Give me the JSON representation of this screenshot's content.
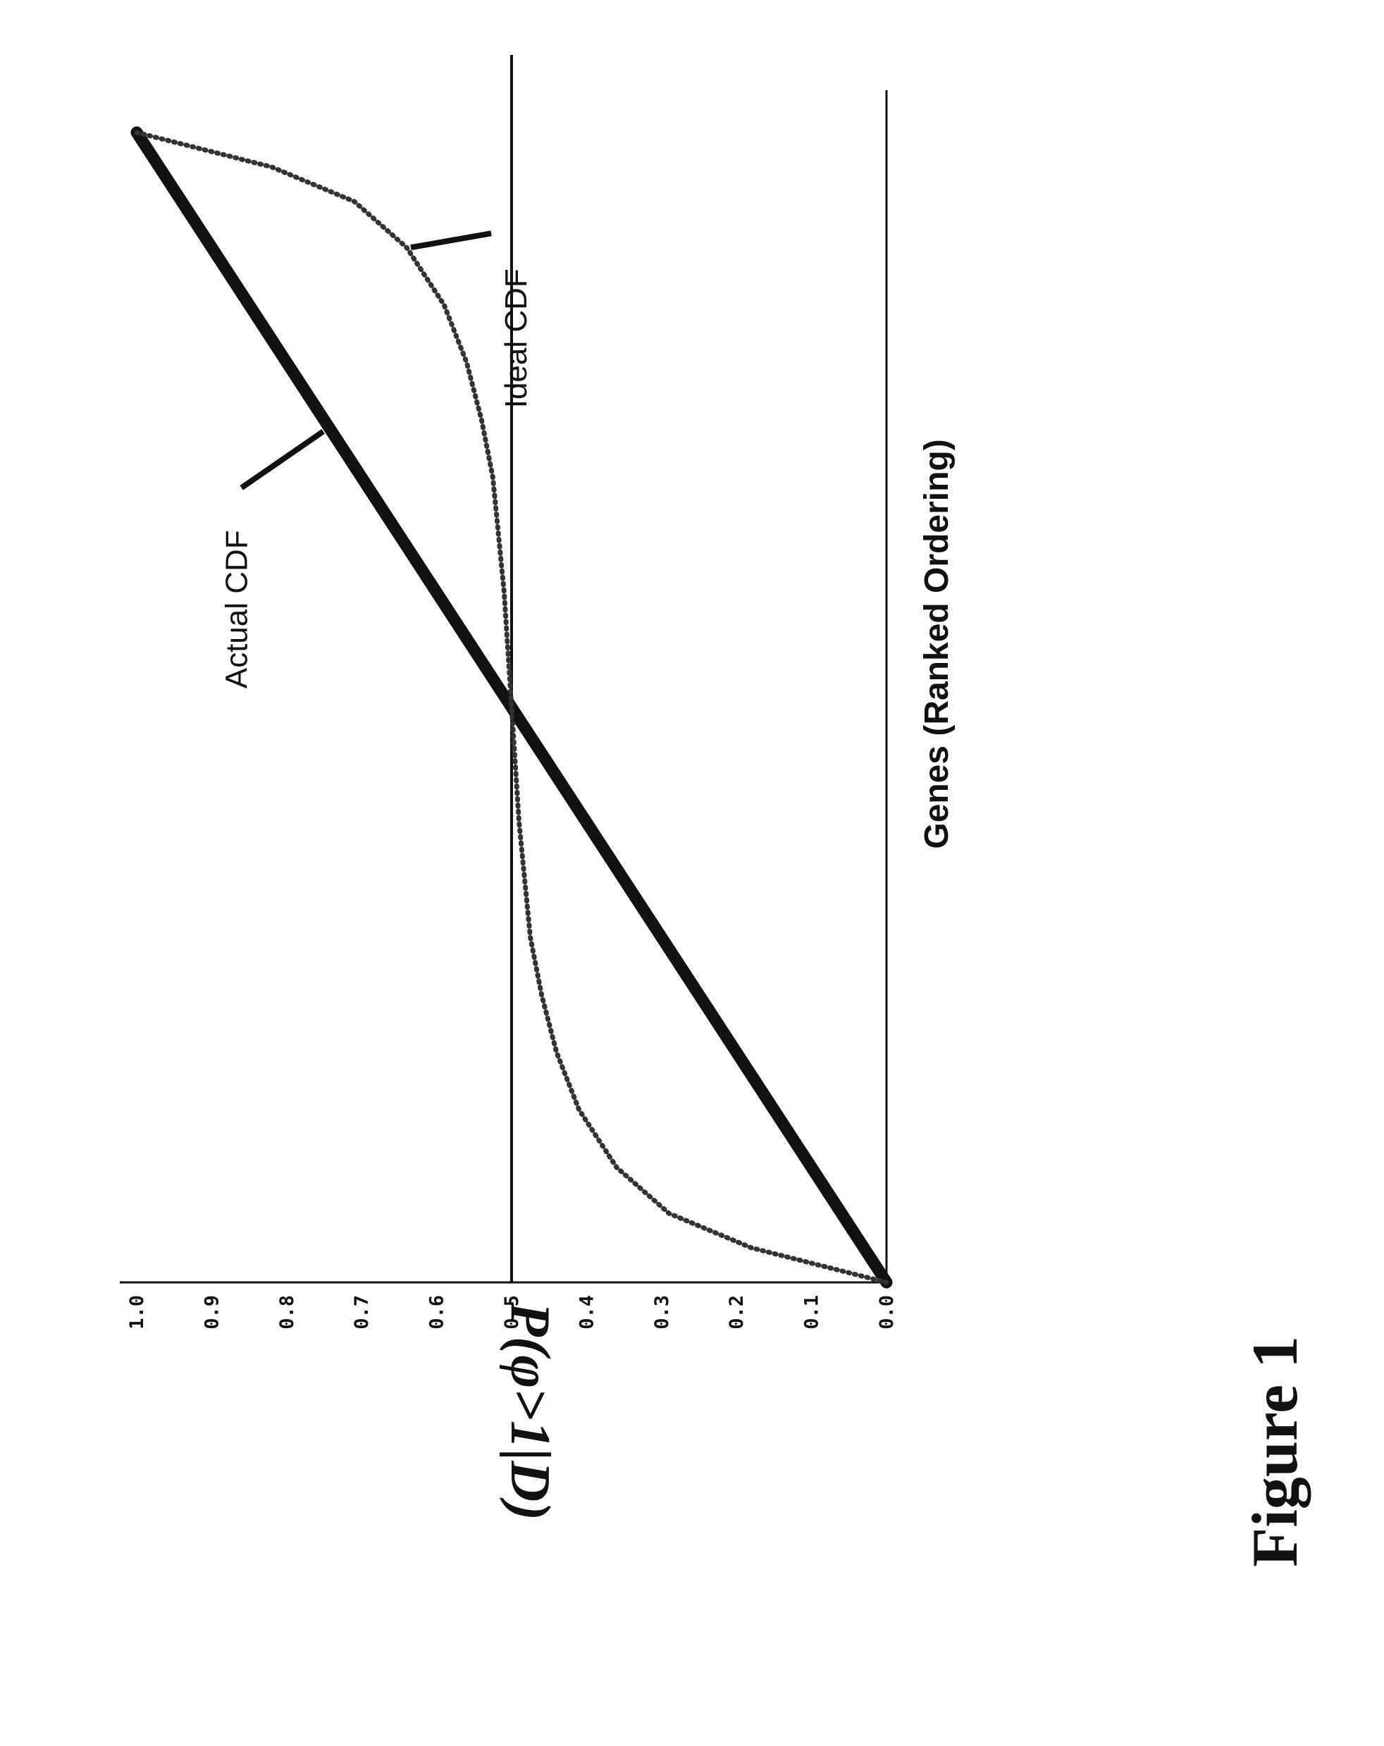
{
  "figure_label": "Figure 1",
  "chart_data": {
    "type": "line",
    "title": "",
    "xlabel": "Genes (Ranked Ordering)",
    "ylabel": "P(φ>1|D)",
    "ylim": [
      0.0,
      1.0
    ],
    "yticks": [
      "0.0",
      "0.1",
      "0.2",
      "0.3",
      "0.4",
      "0.5",
      "0.6",
      "0.7",
      "0.8",
      "0.9",
      "1.0"
    ],
    "x_normalized": true,
    "reference_line": 0.5,
    "grid": false,
    "legend": "none",
    "series": [
      {
        "name": "Actual CDF",
        "style": "thick-solid",
        "color": "#111111",
        "x": [
          0.0,
          0.1,
          0.2,
          0.3,
          0.4,
          0.5,
          0.6,
          0.7,
          0.8,
          0.9,
          1.0
        ],
        "y": [
          0.0,
          0.1,
          0.2,
          0.3,
          0.4,
          0.5,
          0.6,
          0.7,
          0.8,
          0.9,
          1.0
        ]
      },
      {
        "name": "Ideal CDF",
        "style": "dotted",
        "color": "#333333",
        "x": [
          0.0,
          0.03,
          0.06,
          0.1,
          0.15,
          0.2,
          0.25,
          0.3,
          0.4,
          0.5,
          0.6,
          0.7,
          0.75,
          0.8,
          0.85,
          0.9,
          0.94,
          0.97,
          1.0
        ],
        "y": [
          0.0,
          0.18,
          0.29,
          0.36,
          0.41,
          0.44,
          0.46,
          0.475,
          0.49,
          0.5,
          0.51,
          0.525,
          0.54,
          0.56,
          0.59,
          0.64,
          0.71,
          0.82,
          1.0
        ]
      }
    ],
    "annotations": [
      {
        "text": "Actual CDF",
        "series": "Actual CDF",
        "x": 0.74
      },
      {
        "text": "Ideal CDF",
        "series": "Ideal CDF",
        "x": 0.9
      }
    ]
  }
}
